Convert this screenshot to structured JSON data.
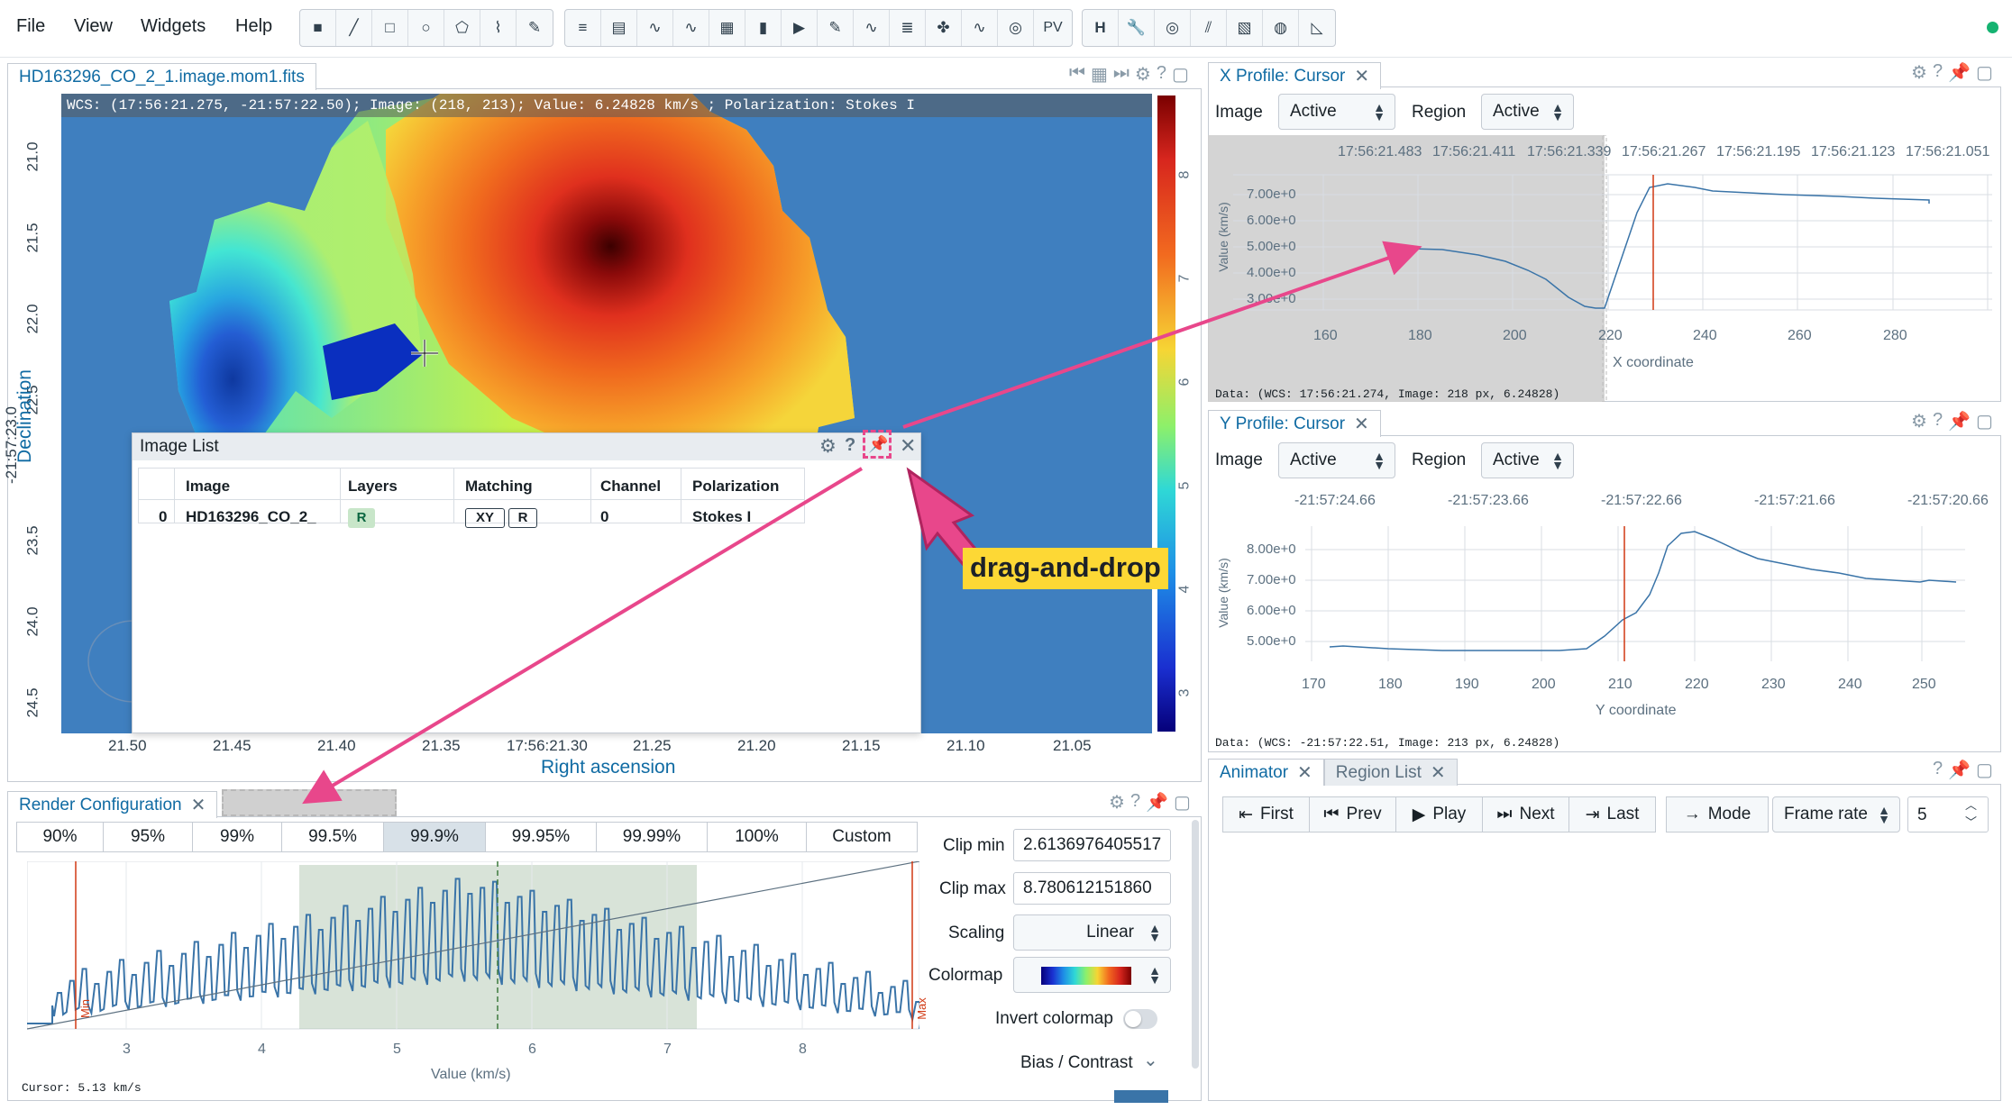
{
  "menu": [
    "File",
    "View",
    "Widgets",
    "Help"
  ],
  "toolbar": {
    "region_tools": [
      "point-tool-icon",
      "line-tool-icon",
      "rectangle-tool-icon",
      "ellipse-tool-icon",
      "polygon-tool-icon",
      "polyline-tool-icon",
      "annotation-tool-icon"
    ],
    "widgets": [
      "layer-list-icon",
      "image-list-icon",
      "spatial-profiler-icon",
      "spectral-profiler-icon",
      "statistics-icon",
      "histogram-icon",
      "animator-icon",
      "render-config-icon",
      "stokes-icon",
      "catalog-icon",
      "cube-icon",
      "moment-icon",
      "spectral-line-icon",
      "fitting-icon"
    ],
    "pv_label": "PV",
    "tools": [
      "header-icon",
      "wrench-icon",
      "contour-icon",
      "vector-icon",
      "file-icon",
      "region-icon",
      "distance-icon"
    ]
  },
  "image_view": {
    "tab_title": "HD163296_CO_2_1.image.mom1.fits",
    "cursor_info": "WCS: (17:56:21.275, -21:57:22.50); Image: (218, 213); Value:  6.24828 km/s ; Polarization: Stokes I",
    "y_ticks": [
      "21.0",
      "21.5",
      "22.0",
      "22.5",
      "-21:57:23.0",
      "23.5",
      "24.0",
      "24.5"
    ],
    "y_label": "Declination",
    "x_ticks": [
      "21.50",
      "21.45",
      "21.40",
      "21.35",
      "17:56:21.30",
      "21.25",
      "21.20",
      "21.15",
      "21.10",
      "21.05"
    ],
    "x_label": "Right ascension",
    "colorbar_ticks": [
      "8",
      "7",
      "6",
      "5",
      "4",
      "3"
    ]
  },
  "image_list": {
    "title": "Image List",
    "headers": [
      "Image",
      "Layers",
      "Matching",
      "Channel",
      "Polarization"
    ],
    "row": {
      "index": "0",
      "image": "HD163296_CO_2_",
      "layer": "R",
      "match_xy": "XY",
      "match_r": "R",
      "channel": "0",
      "polarization": "Stokes I"
    }
  },
  "annotation": {
    "label": "drag-and-drop",
    "color": "#e8478b",
    "highlight": "#fdd835"
  },
  "x_profile": {
    "tab_title": "X Profile: Cursor",
    "image_label": "Image",
    "image_value": "Active",
    "region_label": "Region",
    "region_value": "Active",
    "top_ticks": [
      "17:56:21.483",
      "17:56:21.411",
      "17:56:21.339",
      "17:56:21.267",
      "17:56:21.195",
      "17:56:21.123",
      "17:56:21.051"
    ],
    "y_ticks": [
      "7.00e+0",
      "6.00e+0",
      "5.00e+0",
      "4.00e+0",
      "3.00e+0"
    ],
    "y_label": "Value (km/s)",
    "x_ticks": [
      "160",
      "180",
      "200",
      "220",
      "240",
      "260",
      "280"
    ],
    "x_label": "X coordinate",
    "data_line": "Data: (WCS: 17:56:21.274, Image: 218 px, 6.24828)"
  },
  "y_profile": {
    "tab_title": "Y Profile: Cursor",
    "image_label": "Image",
    "image_value": "Active",
    "region_label": "Region",
    "region_value": "Active",
    "top_ticks": [
      "-21:57:24.66",
      "-21:57:23.66",
      "-21:57:22.66",
      "-21:57:21.66",
      "-21:57:20.66"
    ],
    "y_ticks": [
      "8.00e+0",
      "7.00e+0",
      "6.00e+0",
      "5.00e+0"
    ],
    "y_label": "Value (km/s)",
    "x_ticks": [
      "170",
      "180",
      "190",
      "200",
      "210",
      "220",
      "230",
      "240",
      "250"
    ],
    "x_label": "Y coordinate",
    "data_line": "Data: (WCS: -21:57:22.51, Image: 213 px, 6.24828)"
  },
  "render_config": {
    "tab_title": "Render Configuration",
    "percentiles": [
      "90%",
      "95%",
      "99%",
      "99.5%",
      "99.9%",
      "99.95%",
      "99.99%",
      "100%",
      "Custom"
    ],
    "active_percentile": "99.9%",
    "x_ticks": [
      "3",
      "4",
      "5",
      "6",
      "7",
      "8"
    ],
    "x_label": "Value (km/s)",
    "min_label": "Min",
    "max_label": "Max",
    "cursor_text": "Cursor: 5.13 km/s",
    "clip_min_label": "Clip min",
    "clip_min_value": "2.6136976405517",
    "clip_max_label": "Clip max",
    "clip_max_value": "8.780612151860",
    "scaling_label": "Scaling",
    "scaling_value": "Linear",
    "colormap_label": "Colormap",
    "invert_label": "Invert colormap",
    "bias_label": "Bias / Contrast"
  },
  "animator": {
    "tabs": [
      "Animator",
      "Region List"
    ],
    "buttons": [
      "First",
      "Prev",
      "Play",
      "Next",
      "Last",
      "Mode"
    ],
    "frame_rate_label": "Frame rate",
    "frame_rate_value": "5"
  }
}
